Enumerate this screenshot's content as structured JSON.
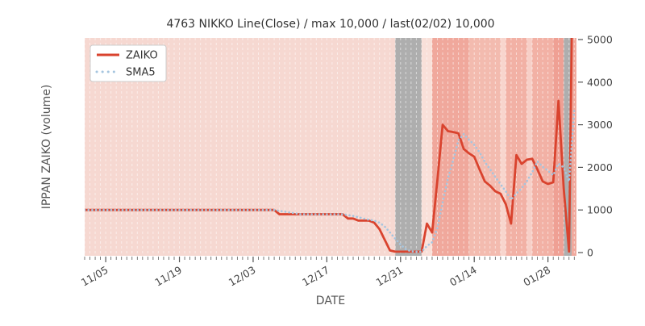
{
  "title": "4763 NIKKO Line(Close) / max 10,000 / last(02/02) 10,000",
  "xlabel": "DATE",
  "ylabel": "IPPAN ZAIKO (volume)",
  "legend": {
    "items": [
      {
        "label": "ZAIKO",
        "color": "#d9432e",
        "style": "solid"
      },
      {
        "label": "SMA5",
        "color": "#a5c5df",
        "style": "dotted"
      }
    ]
  },
  "colors": {
    "zaiko_line": "#d9432e",
    "sma5_line": "#a5c5df",
    "band_default": "#f6d8d1",
    "band_gray": "#aeaeae",
    "gridline": "#ffffff",
    "tick": "#555555",
    "plot_edge": "#ece8e5"
  },
  "chart_data": {
    "type": "line",
    "x_axis": {
      "label": "DATE",
      "tick_labels": [
        "11/05",
        "11/19",
        "12/03",
        "12/17",
        "12/31",
        "01/14",
        "01/28"
      ],
      "tick_days": [
        4,
        18,
        32,
        46,
        60,
        74,
        88
      ],
      "months": [
        {
          "m": "11",
          "days": 30
        },
        {
          "m": "12",
          "days": 31
        },
        {
          "m": "01",
          "days": 31
        },
        {
          "m": "02",
          "days": 2
        }
      ],
      "range_days": [
        0,
        93.4
      ],
      "minor_ticks": "daily"
    },
    "y_axis": {
      "label": "IPPAN ZAIKO (volume)",
      "ticks": [
        0,
        1000,
        2000,
        3000,
        4000,
        5000
      ],
      "ylim": [
        0,
        5000
      ],
      "side": "right"
    },
    "grid": "vertical-daily-dashed-white",
    "legend_position": "upper-left",
    "series": [
      {
        "name": "ZAIKO",
        "note": "daily values from 11/01 to 02/02; last value 10,000 is clipped by ylim 5000",
        "values": [
          1000,
          1000,
          1000,
          1000,
          1000,
          1000,
          1000,
          1000,
          1000,
          1000,
          1000,
          1000,
          1000,
          1000,
          1000,
          1000,
          1000,
          1000,
          1000,
          1000,
          1000,
          1000,
          1000,
          1000,
          1000,
          1000,
          1000,
          1000,
          1000,
          1000,
          1000,
          1000,
          1000,
          1000,
          1000,
          1000,
          1000,
          900,
          900,
          900,
          900,
          900,
          900,
          900,
          900,
          900,
          900,
          900,
          900,
          900,
          800,
          800,
          750,
          750,
          750,
          700,
          550,
          300,
          50,
          20,
          20,
          20,
          20,
          20,
          20,
          680,
          470,
          1700,
          3000,
          2850,
          2830,
          2800,
          2430,
          2330,
          2250,
          1950,
          1670,
          1570,
          1440,
          1380,
          1130,
          680,
          2290,
          2080,
          2180,
          2200,
          1950,
          1670,
          1610,
          1650,
          3560,
          1500,
          20,
          10000
        ]
      },
      {
        "name": "SMA5",
        "derived_from": "ZAIKO",
        "window": 5
      }
    ],
    "background_bands_day_ranges": [
      {
        "from": 0,
        "to": 59,
        "color": "#f6d8d1"
      },
      {
        "from": 59,
        "to": 64,
        "color": "#aeaeae"
      },
      {
        "from": 64,
        "to": 66,
        "color": "#f9e0d9"
      },
      {
        "from": 66,
        "to": 73,
        "color": "#f0a89c"
      },
      {
        "from": 73,
        "to": 79,
        "color": "#f3bbaf"
      },
      {
        "from": 79,
        "to": 80,
        "color": "#f8d5cd"
      },
      {
        "from": 80,
        "to": 84,
        "color": "#f2b1a5"
      },
      {
        "from": 84,
        "to": 85,
        "color": "#f7cfc7"
      },
      {
        "from": 85,
        "to": 89,
        "color": "#f2b1a5"
      },
      {
        "from": 89,
        "to": 91,
        "color": "#efa094"
      },
      {
        "from": 91,
        "to": 92.5,
        "color": "#aeaeae"
      },
      {
        "from": 92.5,
        "to": 93.4,
        "color": "#f0a89c"
      }
    ]
  }
}
